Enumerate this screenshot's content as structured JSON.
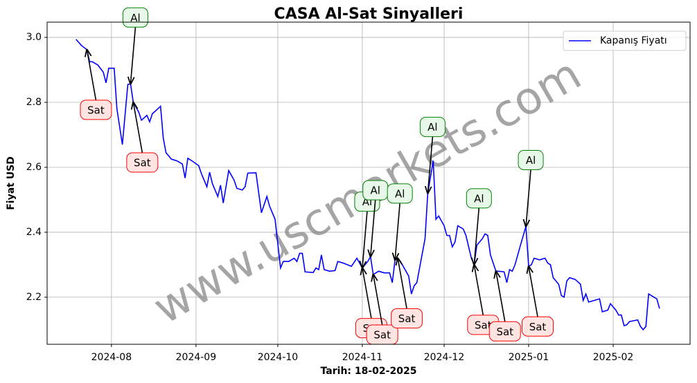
{
  "chart_data": {
    "type": "line",
    "title": "CASA Al-Sat Sinyalleri",
    "xlabel": "Tarih: 18-02-2025",
    "ylabel": "Fiyat USD",
    "watermark": "www.uscmarkets.com",
    "grid": true,
    "legend": "upper right",
    "xlim": [
      -23.6,
      212.2
    ],
    "ylim": [
      2.055,
      3.047
    ],
    "xticks": [
      {
        "value": 0,
        "label": "2024-08"
      },
      {
        "value": 31,
        "label": "2024-09"
      },
      {
        "value": 61,
        "label": "2024-10"
      },
      {
        "value": 92,
        "label": "2024-11"
      },
      {
        "value": 122,
        "label": "2024-12"
      },
      {
        "value": 153,
        "label": "2025-01"
      },
      {
        "value": 184,
        "label": "2025-02"
      }
    ],
    "yticks": [
      2.2,
      2.4,
      2.6,
      2.8,
      {
        "value": 3,
        "label": "3.0"
      }
    ],
    "series": [
      {
        "name": "Kapanış Fiyatı",
        "color": "#0000ff",
        "x": [
          -13,
          -11,
          -9,
          -8,
          -7,
          -5,
          -3,
          -2,
          -1,
          1,
          2,
          4,
          6,
          7,
          8,
          10,
          11,
          13,
          14,
          15,
          17,
          18,
          19,
          20,
          22,
          24,
          26,
          27,
          28,
          30,
          32,
          33,
          35,
          36,
          37,
          39,
          40,
          41,
          43,
          45,
          46,
          48,
          49,
          50,
          53,
          55,
          57,
          58,
          60,
          62,
          63,
          65,
          67,
          68,
          69,
          70,
          71,
          74,
          75,
          76,
          77,
          78,
          80,
          82,
          83,
          85,
          88,
          90,
          92,
          94,
          95,
          96,
          98,
          100,
          102,
          103,
          104,
          105,
          106,
          108,
          109,
          110,
          111,
          112,
          113,
          115,
          116,
          118,
          119,
          120,
          122,
          123,
          124,
          125,
          126,
          127,
          129,
          130,
          132,
          133,
          134,
          136,
          137,
          138,
          139,
          141,
          142,
          144,
          145,
          146,
          147,
          148,
          150,
          152,
          153,
          154,
          155,
          157,
          159,
          160,
          161,
          162,
          164,
          165,
          166,
          167,
          168,
          170,
          172,
          173,
          174,
          175,
          177,
          179,
          180,
          182,
          183,
          185,
          186,
          187,
          188,
          189,
          190,
          193,
          194,
          195,
          196,
          197,
          199,
          200,
          201
        ],
        "values": [
          2.994,
          2.975,
          2.962,
          2.925,
          2.925,
          2.915,
          2.893,
          2.86,
          2.905,
          2.905,
          2.78,
          2.67,
          2.855,
          2.857,
          2.8,
          2.77,
          2.745,
          2.76,
          2.74,
          2.765,
          2.78,
          2.788,
          2.69,
          2.645,
          2.625,
          2.62,
          2.61,
          2.567,
          2.628,
          2.617,
          2.605,
          2.58,
          2.54,
          2.585,
          2.55,
          2.51,
          2.545,
          2.49,
          2.59,
          2.56,
          2.535,
          2.53,
          2.54,
          2.582,
          2.583,
          2.46,
          2.51,
          2.48,
          2.44,
          2.29,
          2.31,
          2.31,
          2.32,
          2.31,
          2.335,
          2.335,
          2.278,
          2.276,
          2.29,
          2.285,
          2.33,
          2.285,
          2.28,
          2.282,
          2.31,
          2.305,
          2.295,
          2.32,
          2.29,
          2.31,
          2.325,
          2.27,
          2.28,
          2.275,
          2.275,
          2.245,
          2.315,
          2.32,
          2.31,
          2.28,
          2.265,
          2.21,
          2.235,
          2.245,
          2.29,
          2.38,
          2.52,
          2.62,
          2.44,
          2.45,
          2.42,
          2.39,
          2.39,
          2.355,
          2.37,
          2.42,
          2.41,
          2.39,
          2.32,
          2.3,
          2.36,
          2.38,
          2.395,
          2.39,
          2.33,
          2.28,
          2.28,
          2.278,
          2.245,
          2.285,
          2.28,
          2.3,
          2.36,
          2.418,
          2.295,
          2.3,
          2.32,
          2.315,
          2.32,
          2.305,
          2.3,
          2.26,
          2.24,
          2.205,
          2.2,
          2.25,
          2.26,
          2.255,
          2.24,
          2.19,
          2.21,
          2.185,
          2.19,
          2.195,
          2.155,
          2.16,
          2.18,
          2.16,
          2.145,
          2.145,
          2.112,
          2.115,
          2.125,
          2.13,
          2.11,
          2.1,
          2.11,
          2.21,
          2.2,
          2.195,
          2.165
        ]
      }
    ],
    "annotations": [
      {
        "text": "Sat",
        "x": -9,
        "y": 2.962
      },
      {
        "text": "Al",
        "x": 7,
        "y": 2.857
      },
      {
        "text": "Sat",
        "x": 8,
        "y": 2.8
      },
      {
        "text": "Al",
        "x": 92,
        "y": 2.29
      },
      {
        "text": "Sat",
        "x": 92,
        "y": 2.29
      },
      {
        "text": "Sat",
        "x": 96,
        "y": 2.27
      },
      {
        "text": "Al",
        "x": 95,
        "y": 2.325
      },
      {
        "text": "Al",
        "x": 104,
        "y": 2.315
      },
      {
        "text": "Sat",
        "x": 105,
        "y": 2.32
      },
      {
        "text": "Al",
        "x": 116,
        "y": 2.52
      },
      {
        "text": "Al",
        "x": 133,
        "y": 2.3
      },
      {
        "text": "Sat",
        "x": 133,
        "y": 2.3
      },
      {
        "text": "Sat",
        "x": 141,
        "y": 2.28
      },
      {
        "text": "Al",
        "x": 152,
        "y": 2.418
      },
      {
        "text": "Sat",
        "x": 153,
        "y": 2.295
      }
    ]
  }
}
